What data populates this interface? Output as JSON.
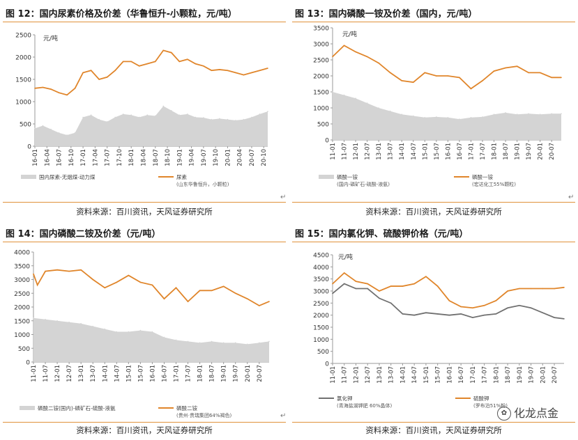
{
  "panels": [
    {
      "title": "图 12：国内尿素价格及价差（华鲁恒升-小颗粒，元/吨）",
      "source": "资料来源：百川资讯，天风证券研究所",
      "chart_data": {
        "type": "area",
        "unit_label": "元/吨",
        "ylim": [
          0,
          2500
        ],
        "yticks": [
          0,
          500,
          1000,
          1500,
          2000,
          2500
        ],
        "x_tick_labels": [
          "16-01",
          "16-04",
          "16-07",
          "16-10",
          "17-01",
          "17-04",
          "17-07",
          "17-10",
          "18-01",
          "18-04",
          "18-07",
          "18-10",
          "19-01",
          "19-04",
          "19-07",
          "19-10",
          "20-01",
          "20-04",
          "20-07",
          "20-10"
        ],
        "x_range": [
          "16-01",
          "20-11"
        ],
        "series": [
          {
            "name": "国内尿素-无烟煤-动力煤",
            "kind": "area",
            "color": "#d4d4d4",
            "x": [
              "16-01",
              "16-03",
              "16-05",
              "16-07",
              "16-09",
              "16-11",
              "17-01",
              "17-03",
              "17-05",
              "17-07",
              "17-09",
              "17-11",
              "18-01",
              "18-03",
              "18-05",
              "18-07",
              "18-09",
              "18-11",
              "19-01",
              "19-03",
              "19-05",
              "19-07",
              "19-09",
              "19-11",
              "20-01",
              "20-03",
              "20-05",
              "20-07",
              "20-09",
              "20-11"
            ],
            "values": [
              400,
              460,
              380,
              300,
              250,
              300,
              650,
              700,
              600,
              550,
              650,
              720,
              700,
              650,
              700,
              680,
              900,
              800,
              700,
              720,
              650,
              640,
              600,
              620,
              600,
              580,
              600,
              650,
              720,
              780
            ]
          },
          {
            "name": "尿素",
            "legend_sub": "(山东华鲁恒升，小颗粒)",
            "kind": "line",
            "color": "#e0852a",
            "x": [
              "16-01",
              "16-03",
              "16-05",
              "16-07",
              "16-09",
              "16-11",
              "17-01",
              "17-03",
              "17-05",
              "17-07",
              "17-09",
              "17-11",
              "18-01",
              "18-03",
              "18-05",
              "18-07",
              "18-09",
              "18-11",
              "19-01",
              "19-03",
              "19-05",
              "19-07",
              "19-09",
              "19-11",
              "20-01",
              "20-03",
              "20-05",
              "20-07",
              "20-09",
              "20-11"
            ],
            "values": [
              1300,
              1320,
              1280,
              1200,
              1150,
              1300,
              1650,
              1700,
              1500,
              1550,
              1700,
              1900,
              1900,
              1800,
              1850,
              1900,
              2150,
              2100,
              1900,
              1950,
              1850,
              1800,
              1700,
              1720,
              1700,
              1650,
              1600,
              1650,
              1700,
              1750
            ]
          }
        ]
      }
    },
    {
      "title": "图 13：国内磷酸一铵及价差（国内，元/吨）",
      "source": "资料来源：百川资讯，天风证券研究所",
      "chart_data": {
        "type": "area",
        "unit_label": "元/吨",
        "ylim": [
          0,
          3500
        ],
        "yticks": [
          0,
          500,
          1000,
          1500,
          2000,
          2500,
          3000,
          3500
        ],
        "x_tick_labels": [
          "11-01",
          "11-07",
          "12-01",
          "12-07",
          "13-01",
          "13-07",
          "14-01",
          "14-07",
          "15-01",
          "15-07",
          "16-01",
          "16-07",
          "17-01",
          "17-07",
          "18-01",
          "18-07",
          "19-01",
          "19-07",
          "20-01",
          "20-07"
        ],
        "x_range": [
          "11-01",
          "20-12"
        ],
        "series": [
          {
            "name": "磷酸一铵",
            "legend_sub": "(国内-磷矿石-硫酸-液氨)",
            "kind": "area",
            "color": "#d4d4d4",
            "x": [
              "11-01",
              "11-07",
              "12-01",
              "12-07",
              "13-01",
              "13-07",
              "14-01",
              "14-07",
              "15-01",
              "15-07",
              "16-01",
              "16-07",
              "17-01",
              "17-07",
              "18-01",
              "18-07",
              "19-01",
              "19-07",
              "20-01",
              "20-07",
              "20-12"
            ],
            "values": [
              1500,
              1400,
              1300,
              1150,
              1000,
              900,
              800,
              750,
              700,
              720,
              700,
              650,
              700,
              720,
              800,
              850,
              800,
              820,
              800,
              820,
              820
            ]
          },
          {
            "name": "磷酸一铵",
            "legend_sub": "(宏达化工55%颗粒)",
            "kind": "line",
            "color": "#e0852a",
            "x": [
              "11-01",
              "11-07",
              "12-01",
              "12-07",
              "13-01",
              "13-07",
              "14-01",
              "14-07",
              "15-01",
              "15-07",
              "16-01",
              "16-07",
              "17-01",
              "17-07",
              "18-01",
              "18-07",
              "19-01",
              "19-07",
              "20-01",
              "20-07",
              "20-12"
            ],
            "values": [
              2600,
              2950,
              2750,
              2600,
              2400,
              2100,
              1850,
              1800,
              2100,
              2000,
              2000,
              1950,
              1600,
              1850,
              2150,
              2250,
              2300,
              2100,
              2100,
              1950,
              1950
            ]
          }
        ]
      }
    },
    {
      "title": "图 14：国内磷酸二铵及价差（元/吨）",
      "source": "资料来源：百川资讯，天风证券研究所",
      "chart_data": {
        "type": "area",
        "unit_label": "",
        "ylim": [
          0,
          4000
        ],
        "yticks": [
          0,
          500,
          1000,
          1500,
          2000,
          2500,
          3000,
          3500,
          4000
        ],
        "x_tick_labels": [
          "11-01",
          "11-07",
          "12-01",
          "12-07",
          "13-01",
          "13-07",
          "14-01",
          "14-07",
          "15-01",
          "15-07",
          "16-01",
          "16-07",
          "17-01",
          "17-07",
          "18-01",
          "18-07",
          "19-01",
          "19-07",
          "20-01",
          "20-07"
        ],
        "x_range": [
          "11-01",
          "20-12"
        ],
        "series": [
          {
            "name": "磷酸二铵(国内)-磷矿石-硫酸-液氨",
            "kind": "area",
            "color": "#d4d4d4",
            "x": [
              "11-01",
              "11-07",
              "12-01",
              "12-07",
              "13-01",
              "13-07",
              "14-01",
              "14-07",
              "15-01",
              "15-07",
              "16-01",
              "16-07",
              "17-01",
              "17-07",
              "18-01",
              "18-07",
              "19-01",
              "19-07",
              "20-01",
              "20-07",
              "20-12"
            ],
            "values": [
              1600,
              1550,
              1500,
              1450,
              1400,
              1300,
              1200,
              1100,
              1100,
              1150,
              1100,
              900,
              800,
              750,
              700,
              750,
              700,
              700,
              650,
              700,
              750
            ]
          },
          {
            "name": "磷酸二铵",
            "legend_sub": "(贵州·贵瑞集团64%褐色)",
            "kind": "line",
            "color": "#e0852a",
            "x": [
              "11-01",
              "11-03",
              "11-07",
              "12-01",
              "12-07",
              "13-01",
              "13-07",
              "14-01",
              "14-07",
              "15-01",
              "15-07",
              "16-01",
              "16-07",
              "17-01",
              "17-07",
              "18-01",
              "18-07",
              "19-01",
              "19-07",
              "20-01",
              "20-07",
              "20-12"
            ],
            "values": [
              3200,
              2800,
              3300,
              3350,
              3300,
              3350,
              3000,
              2700,
              2900,
              3150,
              2900,
              2800,
              2300,
              2700,
              2200,
              2600,
              2600,
              2750,
              2500,
              2300,
              2050,
              2200
            ]
          }
        ]
      }
    },
    {
      "title": "图 15：国内氯化钾、硫酸钾价格（元/吨）",
      "source": "资料来源：百川资讯，天风证券研究所",
      "chart_data": {
        "type": "line",
        "unit_label": "元/吨",
        "ylim": [
          0,
          4500
        ],
        "yticks": [
          0,
          500,
          1000,
          1500,
          2000,
          2500,
          3000,
          3500,
          4000,
          4500
        ],
        "x_tick_labels": [
          "11-01",
          "11-07",
          "12-01",
          "12-07",
          "13-01",
          "13-07",
          "14-01",
          "14-07",
          "15-01",
          "15-07",
          "16-01",
          "16-07",
          "17-01",
          "17-07",
          "18-01",
          "18-07",
          "19-01",
          "19-07",
          "20-01",
          "20-07"
        ],
        "x_range": [
          "11-01",
          "20-12"
        ],
        "series": [
          {
            "name": "氯化钾",
            "legend_sub": "(青海盐湖钾肥 60%晶体)",
            "kind": "line",
            "color": "#707070",
            "x": [
              "11-01",
              "11-07",
              "12-01",
              "12-07",
              "13-01",
              "13-07",
              "14-01",
              "14-07",
              "15-01",
              "15-07",
              "16-01",
              "16-07",
              "17-01",
              "17-07",
              "18-01",
              "18-07",
              "19-01",
              "19-07",
              "20-01",
              "20-07",
              "20-12"
            ],
            "values": [
              2900,
              3300,
              3100,
              3100,
              2700,
              2500,
              2050,
              2000,
              2100,
              2050,
              2000,
              2050,
              1900,
              2000,
              2050,
              2300,
              2400,
              2300,
              2100,
              1900,
              1850
            ]
          },
          {
            "name": "硫酸钾",
            "legend_sub": "(罗布泊51%粉)",
            "kind": "line",
            "color": "#e0852a",
            "x": [
              "11-01",
              "11-07",
              "12-01",
              "12-07",
              "13-01",
              "13-07",
              "14-01",
              "14-07",
              "15-01",
              "15-07",
              "16-01",
              "16-07",
              "17-01",
              "17-07",
              "18-01",
              "18-07",
              "19-01",
              "19-07",
              "20-01",
              "20-07",
              "20-12"
            ],
            "values": [
              3300,
              3750,
              3400,
              3300,
              3000,
              3200,
              3200,
              3300,
              3600,
              3200,
              2600,
              2350,
              2300,
              2400,
              2600,
              3000,
              3100,
              3100,
              3100,
              3100,
              3150
            ]
          }
        ]
      }
    }
  ],
  "watermark": {
    "text": "化龙点金"
  },
  "return_mark": "↵"
}
